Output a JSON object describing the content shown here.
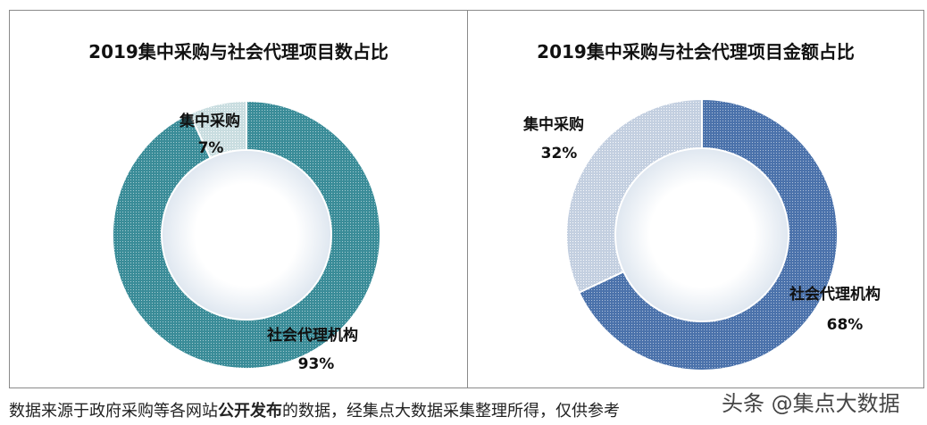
{
  "chart_data": [
    {
      "type": "pie",
      "variant": "donut",
      "title": "2019集中采购与社会代理项目数占比",
      "categories": [
        "集中采购",
        "社会代理机构"
      ],
      "values": [
        7,
        93
      ],
      "data_labels": [
        "7%",
        "93%"
      ],
      "colors": [
        "#c9dde0",
        "#3a8c98"
      ]
    },
    {
      "type": "pie",
      "variant": "donut",
      "title": "2019集中采购与社会代理项目金额占比",
      "categories": [
        "集中采购",
        "社会代理机构"
      ],
      "values": [
        32,
        68
      ],
      "data_labels": [
        "32%",
        "68%"
      ],
      "colors": [
        "#c3cfe0",
        "#4b72ab"
      ]
    }
  ],
  "footer": {
    "text_before": "数据来源于政府采购等各网站",
    "text_bold": "公开发布",
    "text_after": "的数据，经集点大数据采集整理所得，仅供参考"
  },
  "watermark": "头条 @集点大数据"
}
